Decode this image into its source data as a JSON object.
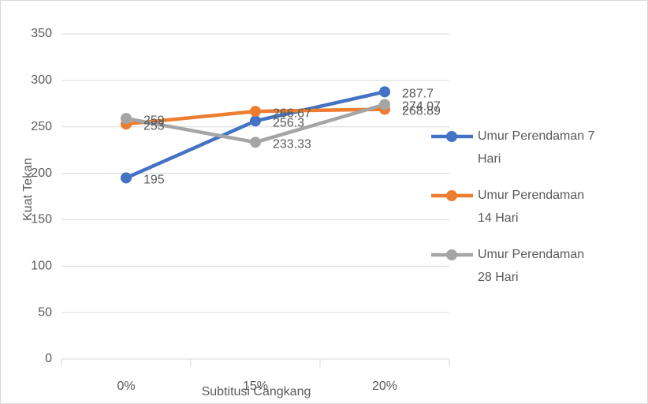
{
  "chart_data": {
    "type": "line",
    "x_label": "Subtitusi Cangkang",
    "y_label": "Kuat Tekan",
    "categories": [
      "0%",
      "15%",
      "20%"
    ],
    "series": [
      {
        "name": "Umur Perendaman 7 Hari",
        "color": "#4472c4",
        "values": [
          195,
          256.3,
          287.7
        ]
      },
      {
        "name": "Umur Perendaman 14 Hari",
        "color": "#ed7d31",
        "values": [
          253,
          266.67,
          268.89
        ]
      },
      {
        "name": "Umur Perendaman 28 Hari",
        "color": "#a5a5a5",
        "values": [
          259,
          233.33,
          274.07
        ]
      }
    ],
    "ylim": [
      0,
      350
    ],
    "yticks": [
      0,
      50,
      100,
      150,
      200,
      250,
      300,
      350
    ],
    "grid": true,
    "legend": "right"
  }
}
